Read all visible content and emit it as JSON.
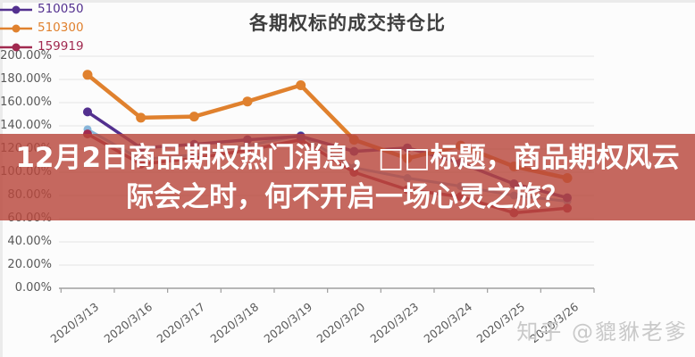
{
  "chart_data": {
    "type": "line",
    "title": "各期权标的成交持仓比",
    "categories": [
      "2020/3/13",
      "2020/3/16",
      "2020/3/17",
      "2020/3/18",
      "2020/3/19",
      "2020/3/20",
      "2020/3/23",
      "2020/3/24",
      "2020/3/25",
      "2020/3/26"
    ],
    "series": [
      {
        "name": "510050",
        "color": "#53308f",
        "values": [
          152,
          121,
          124,
          128,
          131,
          118,
          121,
          108,
          90,
          78
        ],
        "legend_visible": true,
        "line_width": 3.5,
        "marker_r": 5,
        "draw_order": 2
      },
      {
        "name": "510300",
        "color": "#e0812e",
        "values": [
          184,
          147,
          148,
          161,
          175,
          128,
          112,
          123,
          105,
          95
        ],
        "legend_visible": true,
        "line_width": 4.5,
        "marker_r": 5.5,
        "draw_order": 3
      },
      {
        "name": "159919",
        "color": "#a12a50",
        "values": [
          133,
          107,
          112,
          119,
          128,
          100,
          85,
          79,
          65,
          69
        ],
        "legend_visible": true,
        "line_width": 3.5,
        "marker_r": 5,
        "draw_order": 1
      },
      {
        "name": "",
        "color": "#88b6da",
        "values": [
          137,
          111,
          115,
          123,
          132,
          104,
          95,
          88,
          80,
          75
        ],
        "legend_visible": false,
        "line_width": 3,
        "marker_r": 4.5,
        "draw_order": 0
      }
    ],
    "ylim": [
      0,
      200
    ],
    "y_tick_labels": [
      "0.00%",
      "20.00%",
      "40.00%",
      "60.00%",
      "80.00%",
      "100.00%",
      "120.00%",
      "140.00%",
      "160.00%",
      "180.00%",
      "200.00%"
    ],
    "grid": true,
    "legend_position": "right"
  },
  "overlay": {
    "line1": "12月2日商品期权热门消息，□□标题，商品期权风云",
    "line2": "际会之时，何不开启一场心灵之旅？",
    "background": "#b8473c"
  },
  "watermark": {
    "text": "知乎 @貔貅老爹"
  }
}
